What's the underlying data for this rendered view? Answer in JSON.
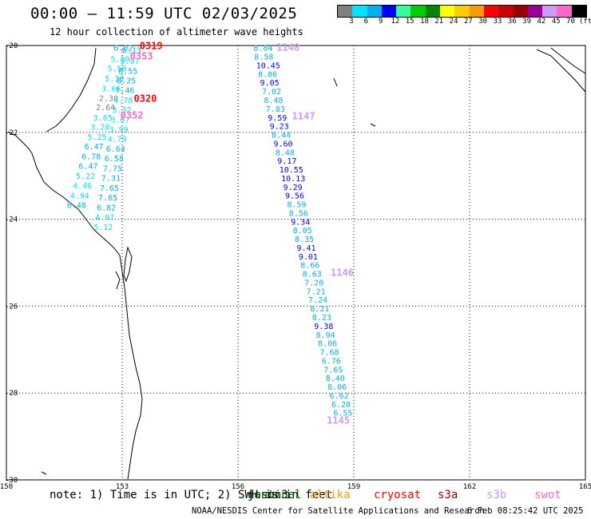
{
  "header": {
    "title": "00:00 – 11:59 UTC 02/03/2025",
    "subtitle": "12 hour collection of altimeter wave heights"
  },
  "colorbar": {
    "unit": "(ft)",
    "colors": [
      "#808080",
      "#00e5ff",
      "#00b0f0",
      "#0000ff",
      "#33ff99",
      "#00cc00",
      "#008800",
      "#ffff00",
      "#ffcc00",
      "#ff9900",
      "#ff0000",
      "#cc0000",
      "#990000",
      "#990099",
      "#cc99ff",
      "#ff66cc",
      "#000000"
    ],
    "ticks": [
      "3",
      "6",
      "9",
      "12",
      "15",
      "18",
      "21",
      "24",
      "27",
      "30",
      "33",
      "36",
      "39",
      "42",
      "45",
      "70"
    ]
  },
  "axes": {
    "lon_ticks": [
      "150",
      "153",
      "156",
      "159",
      "162",
      "165"
    ],
    "lat_ticks": [
      "-20",
      "-22",
      "-24",
      "-26",
      "-28",
      "-30"
    ]
  },
  "track_times": [
    "0319",
    "0353",
    "0320",
    "0352",
    "1148",
    "1147",
    "1146",
    "1145"
  ],
  "chart_data": {
    "type": "map",
    "region": {
      "lon": [
        150,
        165
      ],
      "lat": [
        -30,
        -20
      ]
    },
    "east_track": [
      {
        "lat": -20.05,
        "lon": 156.4,
        "swh": 8.84
      },
      {
        "lat": -20.25,
        "lon": 156.42,
        "swh": 8.58
      },
      {
        "lat": -20.45,
        "lon": 156.47,
        "swh": 10.45
      },
      {
        "lat": -20.65,
        "lon": 156.52,
        "swh": 8.06
      },
      {
        "lat": -20.85,
        "lon": 156.57,
        "swh": 9.05
      },
      {
        "lat": -21.05,
        "lon": 156.62,
        "swh": 7.02
      },
      {
        "lat": -21.25,
        "lon": 156.67,
        "swh": 8.48
      },
      {
        "lat": -21.45,
        "lon": 156.72,
        "swh": 7.83
      },
      {
        "lat": -21.65,
        "lon": 156.77,
        "swh": 9.59
      },
      {
        "lat": -21.85,
        "lon": 156.82,
        "swh": 9.23
      },
      {
        "lat": -22.05,
        "lon": 156.87,
        "swh": 8.44
      },
      {
        "lat": -22.25,
        "lon": 156.92,
        "swh": 9.6
      },
      {
        "lat": -22.45,
        "lon": 156.97,
        "swh": 8.48
      },
      {
        "lat": -22.65,
        "lon": 157.02,
        "swh": 9.17
      },
      {
        "lat": -22.85,
        "lon": 157.07,
        "swh": 10.55
      },
      {
        "lat": -23.05,
        "lon": 157.12,
        "swh": 10.13
      },
      {
        "lat": -23.25,
        "lon": 157.17,
        "swh": 9.29
      },
      {
        "lat": -23.45,
        "lon": 157.22,
        "swh": 9.56
      },
      {
        "lat": -23.65,
        "lon": 157.27,
        "swh": 8.59
      },
      {
        "lat": -23.85,
        "lon": 157.32,
        "swh": 8.56
      },
      {
        "lat": -24.05,
        "lon": 157.37,
        "swh": 9.34
      },
      {
        "lat": -24.25,
        "lon": 157.42,
        "swh": 8.05
      },
      {
        "lat": -24.45,
        "lon": 157.47,
        "swh": 8.35
      },
      {
        "lat": -24.65,
        "lon": 157.52,
        "swh": 9.41
      },
      {
        "lat": -24.85,
        "lon": 157.57,
        "swh": 9.01
      },
      {
        "lat": -25.05,
        "lon": 157.62,
        "swh": 8.66
      },
      {
        "lat": -25.25,
        "lon": 157.67,
        "swh": 8.63
      },
      {
        "lat": -25.45,
        "lon": 157.72,
        "swh": 7.2
      },
      {
        "lat": -25.65,
        "lon": 157.77,
        "swh": 7.21
      },
      {
        "lat": -25.85,
        "lon": 157.82,
        "swh": 7.24
      },
      {
        "lat": -26.05,
        "lon": 157.87,
        "swh": 8.21
      },
      {
        "lat": -26.25,
        "lon": 157.92,
        "swh": 8.23
      },
      {
        "lat": -26.45,
        "lon": 157.97,
        "swh": 9.38
      },
      {
        "lat": -26.65,
        "lon": 158.02,
        "swh": 8.94
      },
      {
        "lat": -26.85,
        "lon": 158.07,
        "swh": 8.06
      },
      {
        "lat": -27.05,
        "lon": 158.12,
        "swh": 7.68
      },
      {
        "lat": -27.25,
        "lon": 158.17,
        "swh": 6.76
      },
      {
        "lat": -27.45,
        "lon": 158.22,
        "swh": 7.65
      },
      {
        "lat": -27.65,
        "lon": 158.27,
        "swh": 8.4
      },
      {
        "lat": -27.85,
        "lon": 158.32,
        "swh": 8.06
      },
      {
        "lat": -28.05,
        "lon": 158.37,
        "swh": 6.62
      },
      {
        "lat": -28.25,
        "lon": 158.42,
        "swh": 6.2
      },
      {
        "lat": -28.45,
        "lon": 158.47,
        "swh": 6.55
      }
    ],
    "west_track_a": [
      {
        "lat": -20.05,
        "lon": 152.78,
        "swh": 6.02
      },
      {
        "lat": -20.3,
        "lon": 152.7,
        "swh": 5.8
      },
      {
        "lat": -20.52,
        "lon": 152.62,
        "swh": 5.5
      },
      {
        "lat": -20.75,
        "lon": 152.55,
        "swh": 5.3
      },
      {
        "lat": -20.98,
        "lon": 152.47,
        "swh": 3.66
      },
      {
        "lat": -21.2,
        "lon": 152.4,
        "swh": 2.3
      },
      {
        "lat": -21.42,
        "lon": 152.32,
        "swh": 2.64
      },
      {
        "lat": -21.65,
        "lon": 152.25,
        "swh": 3.65
      },
      {
        "lat": -21.87,
        "lon": 152.18,
        "swh": 3.28
      },
      {
        "lat": -22.1,
        "lon": 152.1,
        "swh": 5.25
      },
      {
        "lat": -22.32,
        "lon": 152.02,
        "swh": 6.47
      },
      {
        "lat": -22.55,
        "lon": 151.95,
        "swh": 6.78
      },
      {
        "lat": -22.77,
        "lon": 151.87,
        "swh": 6.47
      },
      {
        "lat": -23.0,
        "lon": 151.8,
        "swh": 5.22
      },
      {
        "lat": -23.22,
        "lon": 151.72,
        "swh": 4.46
      },
      {
        "lat": -23.45,
        "lon": 151.65,
        "swh": 4.94
      },
      {
        "lat": -23.67,
        "lon": 151.57,
        "swh": 6.48
      }
    ],
    "west_track_b": [
      {
        "lat": -20.1,
        "lon": 153.0,
        "swh": 6.13
      },
      {
        "lat": -20.35,
        "lon": 152.95,
        "swh": 5.97
      },
      {
        "lat": -20.58,
        "lon": 152.9,
        "swh": 8.55
      },
      {
        "lat": -20.8,
        "lon": 152.86,
        "swh": 8.25
      },
      {
        "lat": -21.02,
        "lon": 152.82,
        "swh": 7.46
      },
      {
        "lat": -21.25,
        "lon": 152.78,
        "swh": 4.78
      },
      {
        "lat": -21.47,
        "lon": 152.74,
        "swh": 3.32
      },
      {
        "lat": -21.7,
        "lon": 152.7,
        "swh": 3.67
      },
      {
        "lat": -21.92,
        "lon": 152.66,
        "swh": 3.99
      },
      {
        "lat": -22.14,
        "lon": 152.62,
        "swh": 4.79
      },
      {
        "lat": -22.37,
        "lon": 152.58,
        "swh": 6.64
      },
      {
        "lat": -22.59,
        "lon": 152.54,
        "swh": 6.58
      },
      {
        "lat": -22.82,
        "lon": 152.5,
        "swh": 7.75
      },
      {
        "lat": -23.04,
        "lon": 152.46,
        "swh": 7.31
      },
      {
        "lat": -23.27,
        "lon": 152.42,
        "swh": 7.65
      },
      {
        "lat": -23.49,
        "lon": 152.38,
        "swh": 7.65
      },
      {
        "lat": -23.72,
        "lon": 152.34,
        "swh": 6.82
      },
      {
        "lat": -23.94,
        "lon": 152.3,
        "swh": 4.97
      },
      {
        "lat": -24.17,
        "lon": 152.26,
        "swh": 5.12
      }
    ]
  },
  "footer": {
    "note": "note: 1) Time is in UTC; 2) SWH is in feet",
    "satellites": [
      {
        "name": "jason3",
        "color": "#000000"
      },
      {
        "name": "sentinel",
        "color": "#006400"
      },
      {
        "name": "altika",
        "color": "#ff9900"
      },
      {
        "name": "cryosat",
        "color": "#ff0000"
      },
      {
        "name": "s3a",
        "color": "#990000"
      },
      {
        "name": "s3b",
        "color": "#cc99ff"
      },
      {
        "name": "swot",
        "color": "#ff66cc"
      }
    ],
    "credit": "NOAA/NESDIS Center for Satellite Applications and Research",
    "generated": "6 Feb 08:25:42 UTC 2025"
  }
}
